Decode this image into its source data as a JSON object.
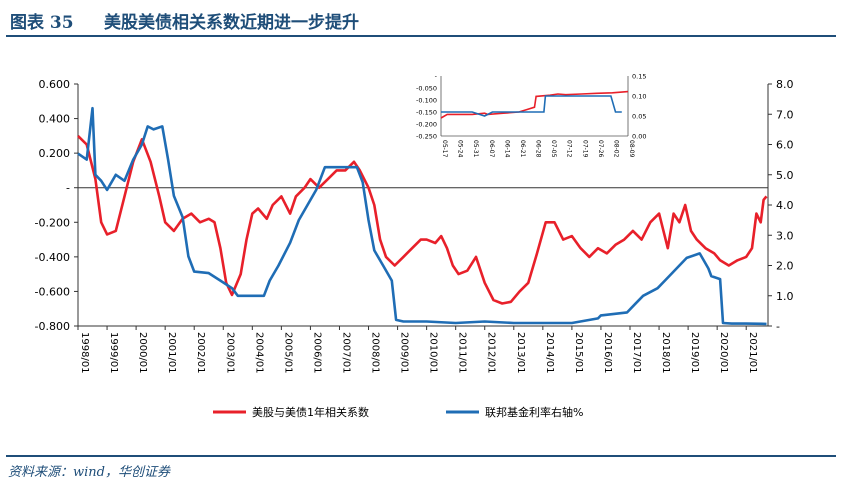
{
  "header": {
    "figure_number": "图表 35",
    "title": "美股美债相关系数近期进一步提升"
  },
  "source": "资料来源：wind，华创证券",
  "colors": {
    "correlation": "#e8202a",
    "fed_rate": "#1f6db5",
    "title": "#1f4e79"
  },
  "chart_data": [
    {
      "type": "line",
      "title": "",
      "xlabel": "",
      "ylabel": "",
      "x": [
        "1998/01",
        "1999/01",
        "2000/01",
        "2001/01",
        "2002/01",
        "2003/01",
        "2004/01",
        "2005/01",
        "2006/01",
        "2007/01",
        "2008/01",
        "2009/01",
        "2010/01",
        "2011/01",
        "2012/01",
        "2013/01",
        "2014/01",
        "2015/01",
        "2016/01",
        "2017/01",
        "2018/01",
        "2019/01",
        "2020/01",
        "2021/01"
      ],
      "xlim": [
        1998.0,
        2021.75
      ],
      "y_left": {
        "ylim": [
          -0.8,
          0.6
        ],
        "ticks": [
          "-0.800",
          "-0.600",
          "-0.400",
          "-0.200",
          "-",
          "0.200",
          "0.400",
          "0.600"
        ]
      },
      "y_right": {
        "ylim": [
          0,
          8
        ],
        "ticks": [
          "-",
          "1.0",
          "2.0",
          "3.0",
          "4.0",
          "5.0",
          "6.0",
          "7.0",
          "8.0"
        ]
      },
      "legend": "bottom",
      "series": [
        {
          "name": "美股与美债1年相关系数",
          "axis": "left",
          "points": [
            [
              1998.0,
              0.3
            ],
            [
              1998.3,
              0.25
            ],
            [
              1998.6,
              0.05
            ],
            [
              1998.8,
              -0.2
            ],
            [
              1999.0,
              -0.27
            ],
            [
              1999.3,
              -0.25
            ],
            [
              1999.6,
              -0.05
            ],
            [
              1999.9,
              0.15
            ],
            [
              2000.2,
              0.28
            ],
            [
              2000.5,
              0.15
            ],
            [
              2000.8,
              -0.05
            ],
            [
              2001.0,
              -0.2
            ],
            [
              2001.3,
              -0.25
            ],
            [
              2001.6,
              -0.18
            ],
            [
              2001.9,
              -0.15
            ],
            [
              2002.2,
              -0.2
            ],
            [
              2002.5,
              -0.18
            ],
            [
              2002.7,
              -0.2
            ],
            [
              2002.9,
              -0.35
            ],
            [
              2003.1,
              -0.55
            ],
            [
              2003.3,
              -0.62
            ],
            [
              2003.6,
              -0.5
            ],
            [
              2003.8,
              -0.3
            ],
            [
              2004.0,
              -0.15
            ],
            [
              2004.2,
              -0.12
            ],
            [
              2004.5,
              -0.18
            ],
            [
              2004.7,
              -0.1
            ],
            [
              2005.0,
              -0.05
            ],
            [
              2005.3,
              -0.15
            ],
            [
              2005.5,
              -0.05
            ],
            [
              2005.8,
              0.0
            ],
            [
              2006.0,
              0.05
            ],
            [
              2006.3,
              0.0
            ],
            [
              2006.6,
              0.05
            ],
            [
              2006.9,
              0.1
            ],
            [
              2007.2,
              0.1
            ],
            [
              2007.5,
              0.15
            ],
            [
              2007.7,
              0.1
            ],
            [
              2008.0,
              0.0
            ],
            [
              2008.2,
              -0.1
            ],
            [
              2008.4,
              -0.3
            ],
            [
              2008.6,
              -0.4
            ],
            [
              2008.9,
              -0.45
            ],
            [
              2009.2,
              -0.4
            ],
            [
              2009.5,
              -0.35
            ],
            [
              2009.8,
              -0.3
            ],
            [
              2010.0,
              -0.3
            ],
            [
              2010.3,
              -0.32
            ],
            [
              2010.5,
              -0.28
            ],
            [
              2010.7,
              -0.35
            ],
            [
              2010.9,
              -0.45
            ],
            [
              2011.1,
              -0.5
            ],
            [
              2011.4,
              -0.48
            ],
            [
              2011.7,
              -0.4
            ],
            [
              2012.0,
              -0.55
            ],
            [
              2012.3,
              -0.65
            ],
            [
              2012.6,
              -0.67
            ],
            [
              2012.9,
              -0.66
            ],
            [
              2013.2,
              -0.6
            ],
            [
              2013.5,
              -0.55
            ],
            [
              2013.8,
              -0.38
            ],
            [
              2014.1,
              -0.2
            ],
            [
              2014.4,
              -0.2
            ],
            [
              2014.7,
              -0.3
            ],
            [
              2015.0,
              -0.28
            ],
            [
              2015.3,
              -0.35
            ],
            [
              2015.6,
              -0.4
            ],
            [
              2015.9,
              -0.35
            ],
            [
              2016.2,
              -0.38
            ],
            [
              2016.5,
              -0.33
            ],
            [
              2016.8,
              -0.3
            ],
            [
              2017.1,
              -0.25
            ],
            [
              2017.4,
              -0.3
            ],
            [
              2017.7,
              -0.2
            ],
            [
              2018.0,
              -0.15
            ],
            [
              2018.3,
              -0.35
            ],
            [
              2018.5,
              -0.15
            ],
            [
              2018.7,
              -0.2
            ],
            [
              2018.9,
              -0.1
            ],
            [
              2019.1,
              -0.25
            ],
            [
              2019.3,
              -0.3
            ],
            [
              2019.6,
              -0.35
            ],
            [
              2019.9,
              -0.38
            ],
            [
              2020.1,
              -0.42
            ],
            [
              2020.4,
              -0.45
            ],
            [
              2020.7,
              -0.42
            ],
            [
              2021.0,
              -0.4
            ],
            [
              2021.2,
              -0.35
            ],
            [
              2021.35,
              -0.15
            ],
            [
              2021.5,
              -0.2
            ],
            [
              2021.6,
              -0.07
            ],
            [
              2021.7,
              -0.05
            ]
          ]
        },
        {
          "name": "联邦基金利率右轴%",
          "axis": "right",
          "points": [
            [
              1998.0,
              5.7
            ],
            [
              1998.3,
              5.5
            ],
            [
              1998.5,
              7.2
            ],
            [
              1998.6,
              5.0
            ],
            [
              1998.8,
              4.8
            ],
            [
              1999.0,
              4.5
            ],
            [
              1999.3,
              5.0
            ],
            [
              1999.6,
              4.8
            ],
            [
              1999.9,
              5.5
            ],
            [
              2000.2,
              6.0
            ],
            [
              2000.4,
              6.6
            ],
            [
              2000.6,
              6.5
            ],
            [
              2000.9,
              6.6
            ],
            [
              2001.1,
              5.5
            ],
            [
              2001.3,
              4.3
            ],
            [
              2001.6,
              3.6
            ],
            [
              2001.8,
              2.3
            ],
            [
              2002.0,
              1.8
            ],
            [
              2002.5,
              1.75
            ],
            [
              2002.9,
              1.5
            ],
            [
              2003.3,
              1.25
            ],
            [
              2003.5,
              1.0
            ],
            [
              2004.0,
              1.0
            ],
            [
              2004.4,
              1.0
            ],
            [
              2004.6,
              1.5
            ],
            [
              2004.9,
              2.0
            ],
            [
              2005.3,
              2.75
            ],
            [
              2005.6,
              3.5
            ],
            [
              2005.9,
              4.0
            ],
            [
              2006.2,
              4.5
            ],
            [
              2006.5,
              5.25
            ],
            [
              2007.0,
              5.25
            ],
            [
              2007.6,
              5.25
            ],
            [
              2007.8,
              4.75
            ],
            [
              2008.0,
              3.5
            ],
            [
              2008.2,
              2.5
            ],
            [
              2008.5,
              2.0
            ],
            [
              2008.8,
              1.5
            ],
            [
              2008.95,
              0.2
            ],
            [
              2009.2,
              0.15
            ],
            [
              2010.0,
              0.15
            ],
            [
              2011.0,
              0.1
            ],
            [
              2012.0,
              0.15
            ],
            [
              2013.0,
              0.1
            ],
            [
              2014.0,
              0.1
            ],
            [
              2015.0,
              0.1
            ],
            [
              2015.9,
              0.25
            ],
            [
              2016.0,
              0.35
            ],
            [
              2016.9,
              0.45
            ],
            [
              2017.2,
              0.75
            ],
            [
              2017.45,
              1.0
            ],
            [
              2017.95,
              1.25
            ],
            [
              2018.2,
              1.5
            ],
            [
              2018.45,
              1.75
            ],
            [
              2018.7,
              2.0
            ],
            [
              2018.95,
              2.25
            ],
            [
              2019.4,
              2.4
            ],
            [
              2019.55,
              2.15
            ],
            [
              2019.7,
              1.9
            ],
            [
              2019.8,
              1.65
            ],
            [
              2020.1,
              1.55
            ],
            [
              2020.2,
              0.1
            ],
            [
              2020.5,
              0.08
            ],
            [
              2021.0,
              0.08
            ],
            [
              2021.7,
              0.07
            ]
          ]
        }
      ]
    },
    {
      "type": "line",
      "title": "",
      "xlabel": "",
      "ylabel": "",
      "x": [
        "05-17",
        "05-24",
        "05-31",
        "06-07",
        "06-14",
        "06-21",
        "06-28",
        "07-05",
        "07-12",
        "07-19",
        "07-26",
        "08-02",
        "08-09"
      ],
      "y_left": {
        "ylim": [
          -0.25,
          0.0
        ],
        "ticks": [
          "-0.250",
          "-0.200",
          "-0.150",
          "-0.100",
          "-0.050",
          "-"
        ]
      },
      "y_right": {
        "ylim": [
          0,
          0.15
        ],
        "ticks": [
          "0.00",
          "0.05",
          "0.10",
          "0.15"
        ]
      },
      "series": [
        {
          "name": "美股与美债1年相关系数",
          "axis": "left",
          "points": [
            [
              0,
              -0.175
            ],
            [
              0.4,
              -0.16
            ],
            [
              1,
              -0.16
            ],
            [
              2,
              -0.16
            ],
            [
              2.8,
              -0.155
            ],
            [
              3,
              -0.16
            ],
            [
              4,
              -0.155
            ],
            [
              5,
              -0.15
            ],
            [
              5.5,
              -0.14
            ],
            [
              6,
              -0.13
            ],
            [
              6.1,
              -0.085
            ],
            [
              7,
              -0.08
            ],
            [
              7.5,
              -0.075
            ],
            [
              8,
              -0.078
            ],
            [
              9,
              -0.075
            ],
            [
              10,
              -0.072
            ],
            [
              11,
              -0.07
            ],
            [
              12,
              -0.065
            ]
          ]
        },
        {
          "name": "联邦基金利率右轴%",
          "axis": "right",
          "points": [
            [
              0,
              0.06
            ],
            [
              1,
              0.06
            ],
            [
              2,
              0.06
            ],
            [
              2.8,
              0.05
            ],
            [
              3.3,
              0.06
            ],
            [
              4,
              0.06
            ],
            [
              5,
              0.06
            ],
            [
              6,
              0.06
            ],
            [
              6.6,
              0.06
            ],
            [
              6.7,
              0.1
            ],
            [
              7,
              0.1
            ],
            [
              8,
              0.1
            ],
            [
              9,
              0.1
            ],
            [
              10,
              0.1
            ],
            [
              10.9,
              0.1
            ],
            [
              11.2,
              0.06
            ],
            [
              11.6,
              0.06
            ]
          ]
        }
      ]
    }
  ]
}
